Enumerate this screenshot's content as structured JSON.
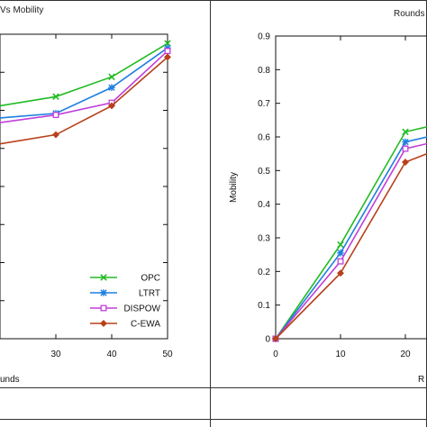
{
  "chart_data": [
    {
      "type": "line",
      "title": "Vs Mobility",
      "xlabel": "unds",
      "ylabel": "",
      "x": [
        30,
        40,
        50
      ],
      "xlim": [
        20,
        50
      ],
      "xticks": [
        "30",
        "40",
        "50"
      ],
      "ylim": [
        0,
        1
      ],
      "grid": false,
      "legend_position": "bottom-right",
      "series": [
        {
          "name": "OPC",
          "color": "#22bb22",
          "marker": "x",
          "values": [
            0.795,
            0.86,
            0.97
          ]
        },
        {
          "name": "LTRT",
          "color": "#1f7fe0",
          "marker": "star",
          "values": [
            0.74,
            0.825,
            0.955
          ]
        },
        {
          "name": "DISPOW",
          "color": "#c03fd8",
          "marker": "square",
          "values": [
            0.735,
            0.775,
            0.945
          ]
        },
        {
          "name": "C-EWA",
          "color": "#b8401a",
          "marker": "diamond",
          "values": [
            0.67,
            0.765,
            0.925
          ]
        }
      ],
      "segments_from_left_edge": {
        "OPC": 0.765,
        "LTRT": 0.725,
        "DISPOW": 0.71,
        "C-EWA": 0.64
      }
    },
    {
      "type": "line",
      "title": "Rounds",
      "xlabel": "R",
      "ylabel": "Mobility",
      "x": [
        0,
        10,
        20
      ],
      "xlim": [
        0,
        25
      ],
      "xticks": [
        "0",
        "10",
        "20"
      ],
      "ylim": [
        0,
        0.9
      ],
      "yticks": [
        "0",
        "0.1",
        "0.2",
        "0.3",
        "0.4",
        "0.5",
        "0.6",
        "0.7",
        "0.8",
        "0.9"
      ],
      "grid": false,
      "series": [
        {
          "name": "OPC",
          "color": "#22bb22",
          "marker": "x",
          "values": [
            0,
            0.28,
            0.615
          ]
        },
        {
          "name": "LTRT",
          "color": "#1f7fe0",
          "marker": "star",
          "values": [
            0,
            0.255,
            0.585
          ]
        },
        {
          "name": "DISPOW",
          "color": "#c03fd8",
          "marker": "square",
          "values": [
            0,
            0.23,
            0.565
          ]
        },
        {
          "name": "C-EWA",
          "color": "#b8401a",
          "marker": "diamond",
          "values": [
            0,
            0.195,
            0.525
          ]
        }
      ],
      "tail_at_right_edge": {
        "OPC": 0.63,
        "LTRT": 0.6,
        "DISPOW": 0.58,
        "C-EWA": 0.55
      }
    }
  ]
}
